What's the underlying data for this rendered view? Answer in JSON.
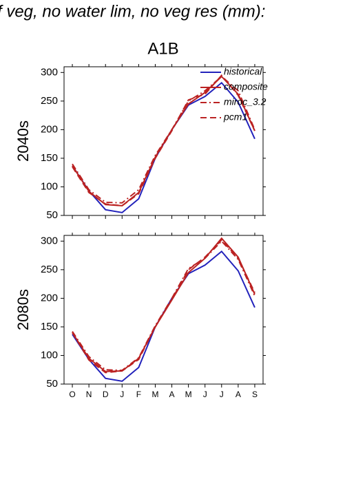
{
  "title": "f veg, no water lim, no veg res (mm):",
  "subtitle": "A1B",
  "chart_data": [
    {
      "type": "line",
      "ylabel": "2040s",
      "categories": [
        null,
        null,
        null,
        null,
        null,
        null,
        null,
        null,
        null,
        null,
        null,
        null
      ],
      "ylim": [
        50,
        310
      ],
      "yticks": [
        50,
        100,
        150,
        200,
        250,
        300
      ],
      "legend": "upper right",
      "series": [
        {
          "name": "historical",
          "color": "#2222bb",
          "dash": "solid",
          "values": [
            137,
            93,
            60,
            55,
            79,
            150,
            200,
            243,
            258,
            282,
            248,
            184
          ]
        },
        {
          "name": "composite",
          "color": "#bb2222",
          "dash": "solid",
          "values": [
            137,
            92,
            69,
            67,
            90,
            152,
            200,
            245,
            265,
            293,
            262,
            198
          ]
        },
        {
          "name": "miroc_3.2",
          "color": "#bb2222",
          "dash": "dashdot",
          "values": [
            140,
            95,
            73,
            72,
            95,
            155,
            200,
            250,
            268,
            293,
            268,
            200
          ]
        },
        {
          "name": "pcm1",
          "color": "#bb2222",
          "dash": "dashed",
          "values": [
            135,
            90,
            70,
            67,
            88,
            150,
            198,
            252,
            262,
            295,
            260,
            198
          ]
        }
      ]
    },
    {
      "type": "line",
      "ylabel": "2080s",
      "categories": [
        "O",
        "N",
        "D",
        "J",
        "F",
        "M",
        "A",
        "M",
        "J",
        "J",
        "A",
        "S"
      ],
      "ylim": [
        50,
        310
      ],
      "yticks": [
        50,
        100,
        150,
        200,
        250,
        300
      ],
      "legend": "none",
      "series": [
        {
          "color": "#2222bb",
          "dash": "solid",
          "values": [
            137,
            93,
            60,
            55,
            79,
            150,
            200,
            243,
            258,
            282,
            248,
            184
          ]
        },
        {
          "color": "#bb2222",
          "dash": "solid",
          "values": [
            140,
            95,
            72,
            73,
            95,
            150,
            197,
            245,
            270,
            305,
            272,
            207
          ]
        },
        {
          "color": "#bb2222",
          "dash": "dashdot",
          "values": [
            142,
            98,
            75,
            74,
            96,
            152,
            200,
            252,
            270,
            300,
            268,
            204
          ]
        },
        {
          "color": "#bb2222",
          "dash": "dashed",
          "values": [
            140,
            92,
            70,
            73,
            93,
            150,
            198,
            250,
            272,
            302,
            270,
            210
          ]
        }
      ]
    }
  ]
}
